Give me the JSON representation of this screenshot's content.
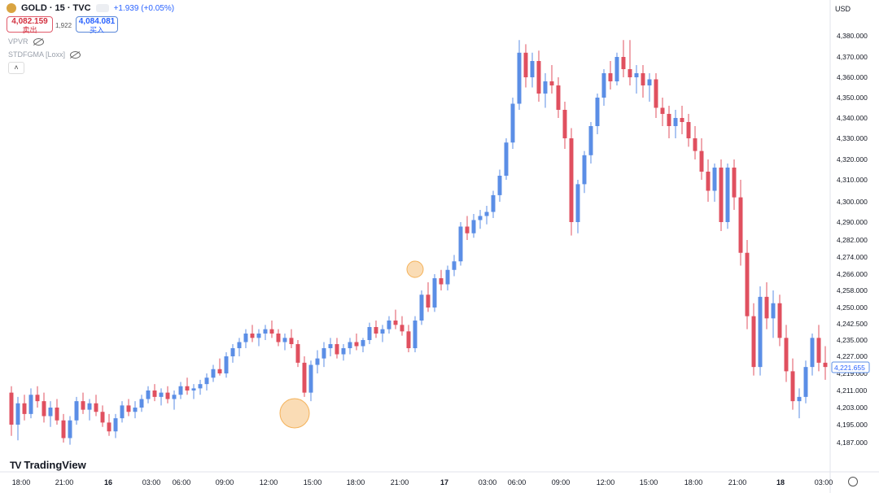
{
  "header": {
    "symbol": "GOLD · 15 · TVC",
    "change": "+1.939 (+0.05%)"
  },
  "quote": {
    "sell_price": "4,082.159",
    "sell_label": "卖出",
    "spread": "1,922",
    "buy_price": "4,084.081",
    "buy_label": "买入"
  },
  "indicators": [
    {
      "name": "VPVR"
    },
    {
      "name": "STDFGMA [Loxx]"
    }
  ],
  "currency": "USD",
  "brand": "TradingView",
  "current_price_label": "4,221.655",
  "colors": {
    "up": "#5b8ee6",
    "down": "#e0505f",
    "marker": "#f4b25a",
    "wave": "#4a7fd8"
  },
  "chart_data": {
    "type": "candlestick",
    "title": "",
    "xlabel": "",
    "ylabel": "",
    "y_tick_labels": [
      "4,380.000",
      "4,370.000",
      "4,360.000",
      "4,350.000",
      "4,340.000",
      "4,330.000",
      "4,320.000",
      "4,310.000",
      "4,300.000",
      "4,290.000",
      "4,282.000",
      "4,274.000",
      "4,266.000",
      "4,258.000",
      "4,250.000",
      "4,242.500",
      "4,235.000",
      "4,227.000",
      "4,219.000",
      "4,211.000",
      "4,203.000",
      "4,195.000",
      "4,187.000"
    ],
    "x_tick_labels": [
      "18:00",
      "21:00",
      "16",
      "03:00",
      "06:00",
      "09:00",
      "12:00",
      "15:00",
      "18:00",
      "21:00",
      "17",
      "03:00",
      "06:00",
      "09:00",
      "12:00",
      "15:00",
      "18:00",
      "21:00",
      "18",
      "03:00"
    ],
    "ohlc_series": [
      [
        4210,
        4213,
        4190,
        4195
      ],
      [
        4195,
        4208,
        4188,
        4205
      ],
      [
        4205,
        4209,
        4197,
        4200
      ],
      [
        4200,
        4212,
        4198,
        4209
      ],
      [
        4209,
        4213,
        4203,
        4206
      ],
      [
        4206,
        4210,
        4196,
        4199
      ],
      [
        4199,
        4206,
        4194,
        4203
      ],
      [
        4203,
        4207,
        4195,
        4197
      ],
      [
        4197,
        4200,
        4187,
        4189
      ],
      [
        4189,
        4199,
        4186,
        4197
      ],
      [
        4197,
        4208,
        4195,
        4206
      ],
      [
        4206,
        4210,
        4200,
        4202
      ],
      [
        4202,
        4207,
        4197,
        4205
      ],
      [
        4205,
        4209,
        4199,
        4201
      ],
      [
        4201,
        4204,
        4194,
        4196
      ],
      [
        4196,
        4200,
        4190,
        4192
      ],
      [
        4192,
        4200,
        4189,
        4198
      ],
      [
        4198,
        4206,
        4196,
        4204
      ],
      [
        4204,
        4207,
        4199,
        4201
      ],
      [
        4201,
        4206,
        4198,
        4203
      ],
      [
        4203,
        4209,
        4201,
        4207
      ],
      [
        4207,
        4213,
        4205,
        4211
      ],
      [
        4211,
        4214,
        4206,
        4208
      ],
      [
        4208,
        4212,
        4204,
        4210
      ],
      [
        4210,
        4213,
        4205,
        4207
      ],
      [
        4207,
        4211,
        4202,
        4209
      ],
      [
        4209,
        4215,
        4207,
        4213
      ],
      [
        4213,
        4217,
        4209,
        4211
      ],
      [
        4211,
        4214,
        4207,
        4212
      ],
      [
        4212,
        4216,
        4209,
        4214
      ],
      [
        4214,
        4219,
        4211,
        4217
      ],
      [
        4217,
        4223,
        4215,
        4221
      ],
      [
        4221,
        4226,
        4218,
        4219
      ],
      [
        4219,
        4229,
        4217,
        4227
      ],
      [
        4227,
        4233,
        4224,
        4231
      ],
      [
        4231,
        4236,
        4227,
        4234
      ],
      [
        4234,
        4240,
        4231,
        4238
      ],
      [
        4238,
        4242,
        4234,
        4236
      ],
      [
        4236,
        4240,
        4232,
        4238
      ],
      [
        4238,
        4242,
        4235,
        4240
      ],
      [
        4240,
        4244,
        4236,
        4238
      ],
      [
        4238,
        4240,
        4232,
        4234
      ],
      [
        4234,
        4238,
        4230,
        4236
      ],
      [
        4236,
        4240,
        4231,
        4233
      ],
      [
        4233,
        4235,
        4222,
        4224
      ],
      [
        4224,
        4227,
        4208,
        4210
      ],
      [
        4210,
        4225,
        4206,
        4223
      ],
      [
        4223,
        4230,
        4219,
        4226
      ],
      [
        4226,
        4234,
        4222,
        4231
      ],
      [
        4231,
        4236,
        4227,
        4233
      ],
      [
        4233,
        4236,
        4226,
        4228
      ],
      [
        4228,
        4233,
        4225,
        4231
      ],
      [
        4231,
        4236,
        4228,
        4234
      ],
      [
        4234,
        4238,
        4230,
        4232
      ],
      [
        4232,
        4236,
        4229,
        4235
      ],
      [
        4235,
        4243,
        4233,
        4241
      ],
      [
        4241,
        4244,
        4236,
        4238
      ],
      [
        4238,
        4242,
        4234,
        4240
      ],
      [
        4240,
        4246,
        4238,
        4244
      ],
      [
        4244,
        4249,
        4240,
        4242
      ],
      [
        4242,
        4246,
        4237,
        4239
      ],
      [
        4239,
        4242,
        4229,
        4231
      ],
      [
        4231,
        4246,
        4229,
        4244
      ],
      [
        4244,
        4258,
        4242,
        4256
      ],
      [
        4256,
        4262,
        4248,
        4250
      ],
      [
        4250,
        4266,
        4248,
        4264
      ],
      [
        4264,
        4268,
        4258,
        4261
      ],
      [
        4261,
        4270,
        4258,
        4268
      ],
      [
        4268,
        4275,
        4265,
        4272
      ],
      [
        4272,
        4290,
        4270,
        4288
      ],
      [
        4288,
        4293,
        4282,
        4285
      ],
      [
        4285,
        4294,
        4283,
        4291
      ],
      [
        4291,
        4296,
        4287,
        4293
      ],
      [
        4293,
        4298,
        4289,
        4295
      ],
      [
        4295,
        4305,
        4292,
        4303
      ],
      [
        4303,
        4315,
        4300,
        4312
      ],
      [
        4312,
        4330,
        4310,
        4328
      ],
      [
        4328,
        4350,
        4325,
        4347
      ],
      [
        4347,
        4378,
        4344,
        4372
      ],
      [
        4372,
        4376,
        4355,
        4360
      ],
      [
        4360,
        4372,
        4355,
        4368
      ],
      [
        4368,
        4373,
        4348,
        4352
      ],
      [
        4352,
        4362,
        4345,
        4358
      ],
      [
        4358,
        4366,
        4352,
        4356
      ],
      [
        4356,
        4360,
        4340,
        4344
      ],
      [
        4344,
        4348,
        4325,
        4330
      ],
      [
        4330,
        4335,
        4284,
        4290
      ],
      [
        4290,
        4310,
        4285,
        4308
      ],
      [
        4308,
        4324,
        4304,
        4322
      ],
      [
        4322,
        4338,
        4318,
        4336
      ],
      [
        4336,
        4352,
        4332,
        4350
      ],
      [
        4350,
        4364,
        4346,
        4362
      ],
      [
        4362,
        4368,
        4354,
        4358
      ],
      [
        4358,
        4372,
        4356,
        4370
      ],
      [
        4370,
        4378,
        4360,
        4364
      ],
      [
        4364,
        4378,
        4356,
        4360
      ],
      [
        4360,
        4366,
        4352,
        4362
      ],
      [
        4362,
        4366,
        4350,
        4356
      ],
      [
        4356,
        4362,
        4348,
        4359
      ],
      [
        4359,
        4362,
        4340,
        4345
      ],
      [
        4345,
        4350,
        4336,
        4342
      ],
      [
        4342,
        4346,
        4330,
        4336
      ],
      [
        4336,
        4344,
        4330,
        4340
      ],
      [
        4340,
        4346,
        4332,
        4338
      ],
      [
        4338,
        4342,
        4326,
        4330
      ],
      [
        4330,
        4336,
        4320,
        4324
      ],
      [
        4324,
        4330,
        4310,
        4314
      ],
      [
        4314,
        4320,
        4300,
        4305
      ],
      [
        4305,
        4318,
        4300,
        4316
      ],
      [
        4316,
        4320,
        4286,
        4290
      ],
      [
        4290,
        4318,
        4287,
        4316
      ],
      [
        4316,
        4320,
        4296,
        4302
      ],
      [
        4302,
        4310,
        4270,
        4276
      ],
      [
        4276,
        4282,
        4240,
        4246
      ],
      [
        4246,
        4252,
        4218,
        4222
      ],
      [
        4222,
        4260,
        4218,
        4255
      ],
      [
        4255,
        4262,
        4240,
        4245
      ],
      [
        4245,
        4258,
        4236,
        4252
      ],
      [
        4252,
        4256,
        4232,
        4236
      ],
      [
        4236,
        4242,
        4215,
        4220
      ],
      [
        4220,
        4226,
        4202,
        4206
      ],
      [
        4206,
        4212,
        4198,
        4208
      ],
      [
        4208,
        4225,
        4205,
        4222
      ],
      [
        4222,
        4238,
        4218,
        4236
      ],
      [
        4236,
        4242,
        4220,
        4224
      ],
      [
        4224,
        4232,
        4216,
        4222
      ]
    ]
  }
}
